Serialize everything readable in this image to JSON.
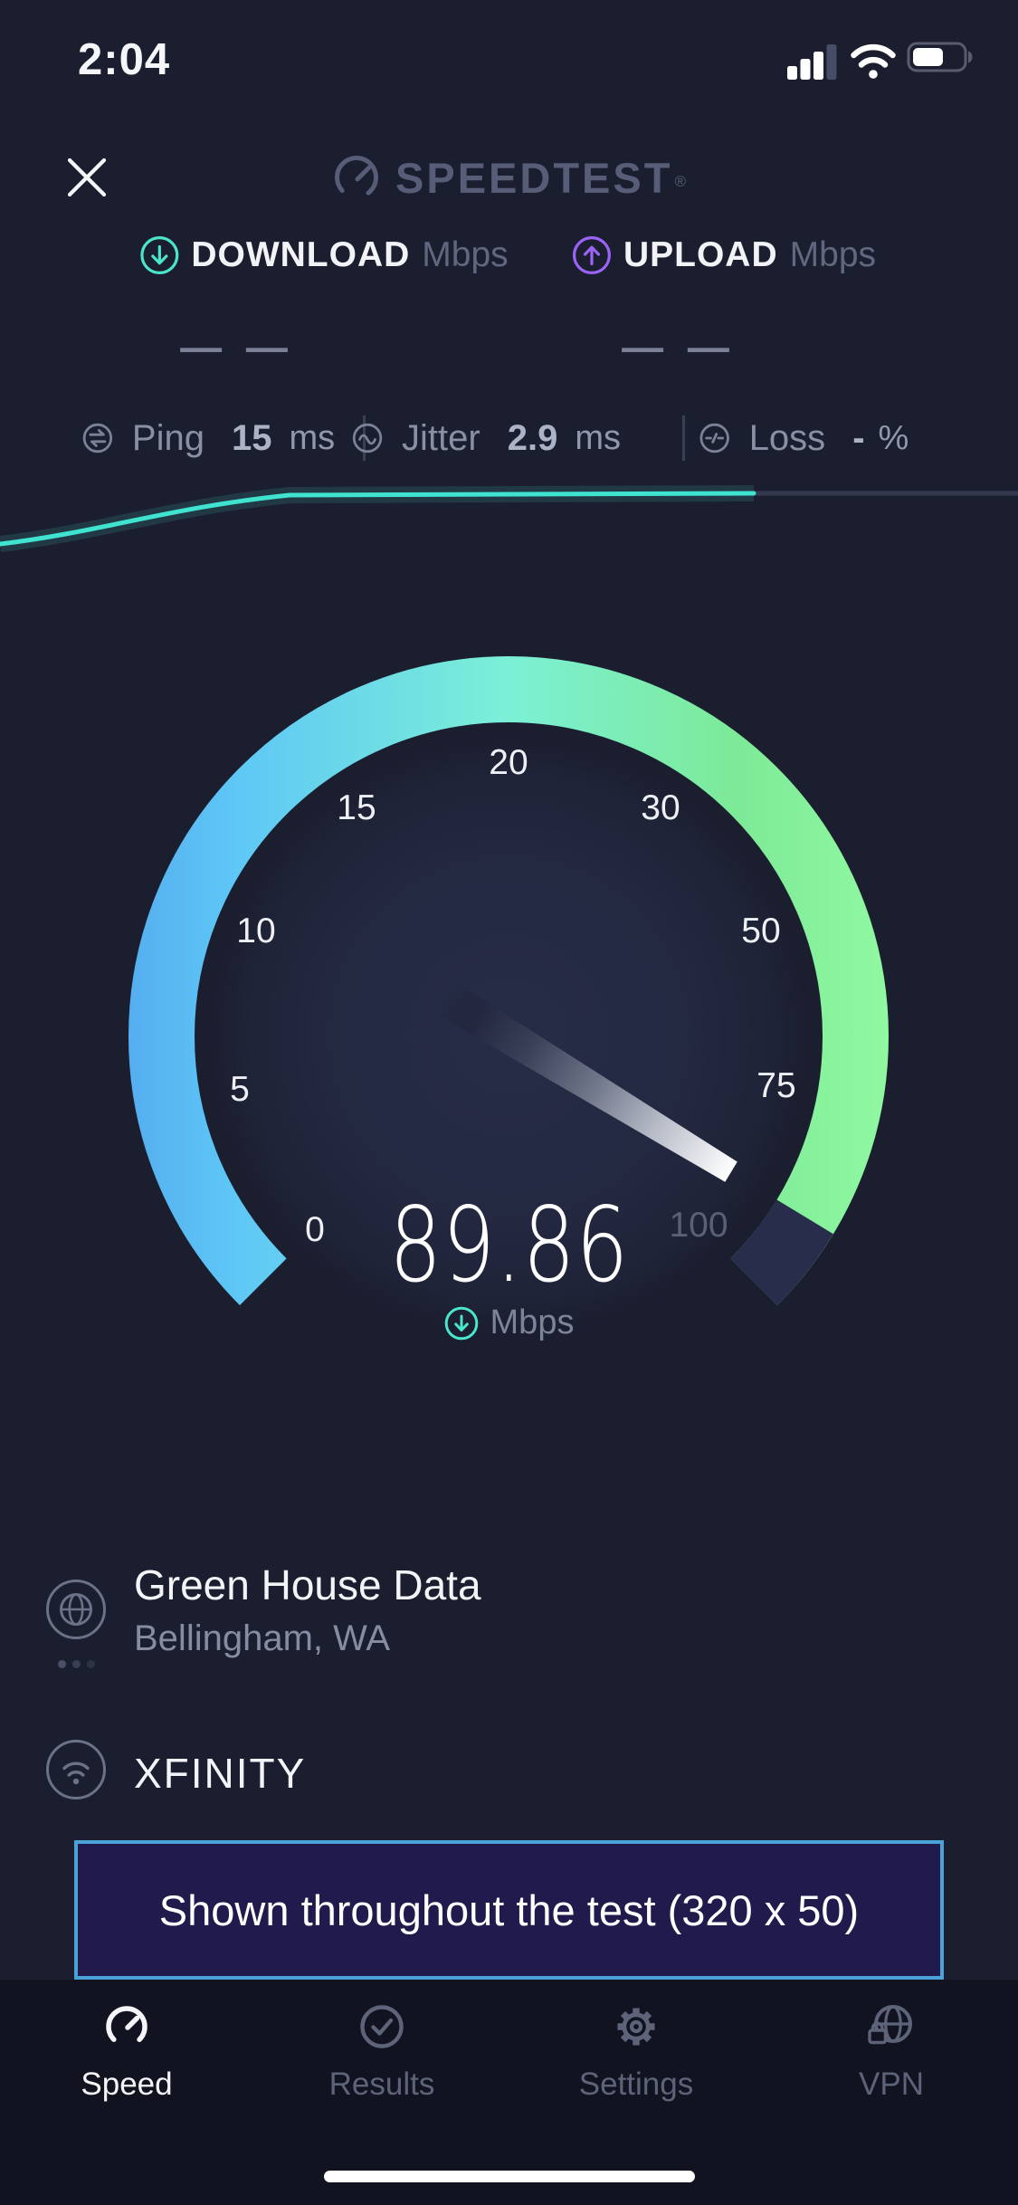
{
  "status_bar": {
    "time": "2:04"
  },
  "header": {
    "logo": "SPEEDTEST",
    "registered": "®"
  },
  "metrics": {
    "download": {
      "label": "DOWNLOAD",
      "unit": "Mbps",
      "placeholder": "— —"
    },
    "upload": {
      "label": "UPLOAD",
      "unit": "Mbps",
      "placeholder": "— —"
    }
  },
  "stats": {
    "ping": {
      "label": "Ping",
      "value": "15",
      "unit": "ms"
    },
    "jitter": {
      "label": "Jitter",
      "value": "2.9",
      "unit": "ms"
    },
    "loss": {
      "label": "Loss",
      "value": "-",
      "unit": "%"
    }
  },
  "gauge": {
    "value": "89.86",
    "unit": "Mbps",
    "min": 0,
    "max": 100,
    "ticks": [
      "0",
      "5",
      "10",
      "15",
      "20",
      "30",
      "50",
      "75",
      "100"
    ]
  },
  "connection": {
    "server": {
      "name": "Green House Data",
      "location": "Bellingham, WA"
    },
    "isp": {
      "name": "XFINITY"
    }
  },
  "ad": {
    "text": "Shown throughout the test (320 x 50)"
  },
  "tab_bar": {
    "items": [
      {
        "label": "Speed",
        "active": true
      },
      {
        "label": "Results",
        "active": false
      },
      {
        "label": "Settings",
        "active": false
      },
      {
        "label": "VPN",
        "active": false
      }
    ]
  },
  "colors": {
    "background": "#1b1e2f",
    "tab_bar_background": "#121320",
    "teal_accent": "#49e6cc",
    "purple_accent": "#9c64f6",
    "graph_line": "#3fe3cf",
    "gauge_blue": "#55aeef",
    "gauge_mint": "#7cf0d6",
    "gauge_green": "#90f8a1",
    "gauge_remainder": "#272d4b",
    "ad_border": "#4aa2d8",
    "ad_background": "#201a4d"
  }
}
